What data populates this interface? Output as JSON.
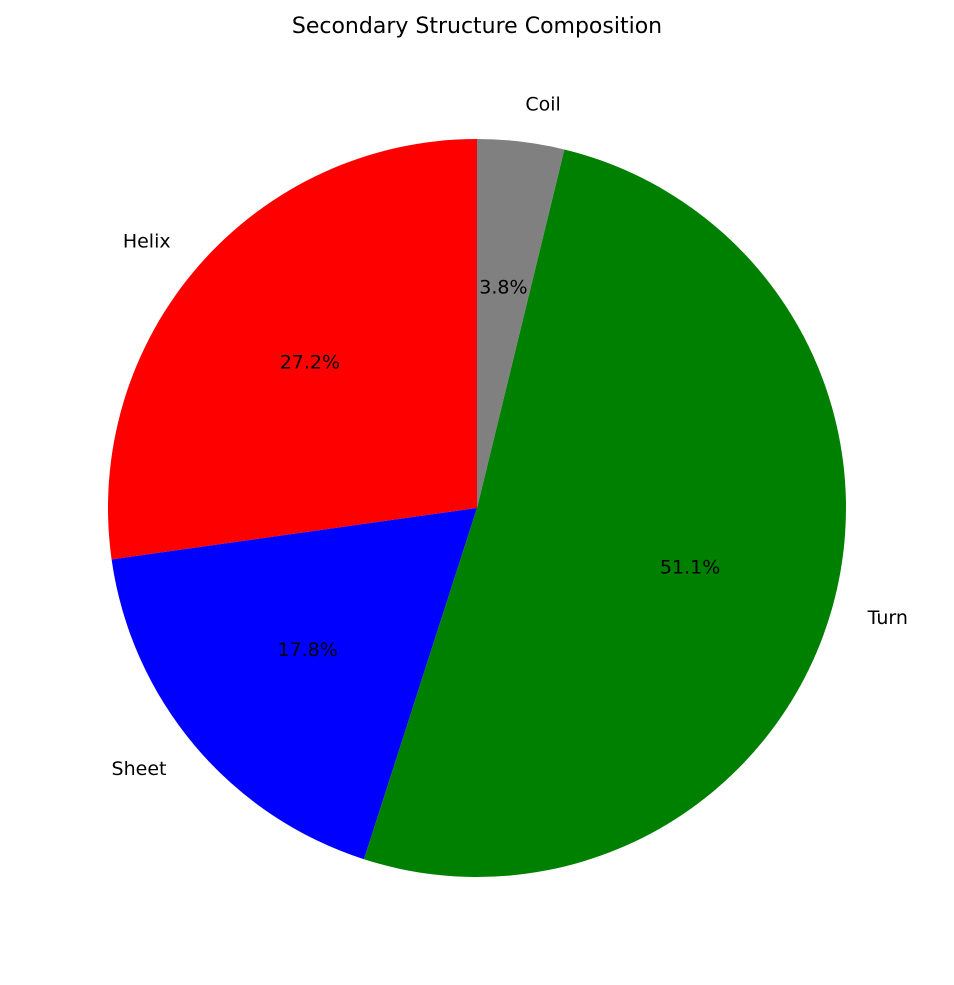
{
  "chart_data": {
    "type": "pie",
    "title": "Secondary Structure Composition",
    "categories": [
      "Helix",
      "Sheet",
      "Turn",
      "Coil"
    ],
    "values": [
      27.2,
      17.8,
      51.1,
      3.8
    ],
    "value_labels": [
      "27.2%",
      "17.8%",
      "51.1%",
      "3.8%"
    ],
    "colors": [
      "#ff0000",
      "#0000ff",
      "#008000",
      "#808080"
    ],
    "start_angle_deg": 90,
    "direction": "counterclockwise",
    "legend": "none"
  }
}
